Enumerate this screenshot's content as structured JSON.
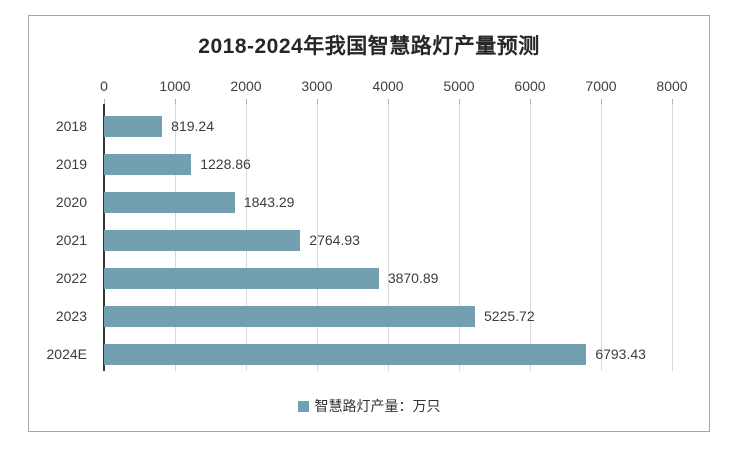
{
  "page": {
    "background": "#ffffff",
    "frame_border_color": "#a6a6a6"
  },
  "chart_data": {
    "type": "bar",
    "orientation": "horizontal",
    "title": "2018-2024年我国智慧路灯产量预测",
    "categories": [
      "2018",
      "2019",
      "2020",
      "2021",
      "2022",
      "2023",
      "2024E"
    ],
    "series": [
      {
        "name": "智慧路灯产量：万只",
        "values": [
          819.24,
          1228.86,
          1843.29,
          2764.93,
          3870.89,
          5225.72,
          6793.43
        ]
      }
    ],
    "value_labels": [
      "819.24",
      "1228.86",
      "1843.29",
      "2764.93",
      "3870.89",
      "5225.72",
      "6793.43"
    ],
    "x_axis": {
      "position": "top",
      "min": 0,
      "max": 8000,
      "tick_step": 1000,
      "ticks": [
        "0",
        "1000",
        "2000",
        "3000",
        "4000",
        "5000",
        "6000",
        "7000",
        "8000"
      ]
    },
    "legend": {
      "position": "bottom",
      "items": [
        {
          "label": "智慧路灯产量：万只",
          "marker_color": "#73A0B1"
        }
      ]
    },
    "grid": true,
    "colors": {
      "bar": "#73A0B1",
      "gridline": "#d9d9d9",
      "axis_line": "#363636",
      "tick_mark": "#b3b3b3",
      "text": "#3d3d3d",
      "title": "#262626"
    }
  }
}
